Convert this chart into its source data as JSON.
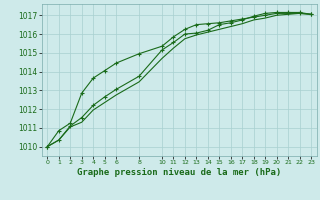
{
  "xlabel": "Graphe pression niveau de la mer (hPa)",
  "background_color": "#ceeaea",
  "grid_color": "#a8d0d0",
  "line_color": "#1a6b1a",
  "text_color": "#1a6b1a",
  "xlim": [
    -0.5,
    23.5
  ],
  "ylim": [
    1009.5,
    1017.6
  ],
  "yticks": [
    1010,
    1011,
    1012,
    1013,
    1014,
    1015,
    1016,
    1017
  ],
  "xtick_positions": [
    0,
    1,
    2,
    3,
    4,
    5,
    6,
    8,
    10,
    11,
    12,
    13,
    14,
    15,
    16,
    17,
    18,
    19,
    20,
    21,
    22,
    23
  ],
  "xtick_labels": [
    "0",
    "1",
    "2",
    "3",
    "4",
    "5",
    "6",
    "8",
    "10",
    "11",
    "12",
    "13",
    "14",
    "15",
    "16",
    "17",
    "18",
    "19",
    "20",
    "21",
    "22",
    "23"
  ],
  "series1_x": [
    0,
    1,
    2,
    3,
    4,
    5,
    6,
    8,
    10,
    11,
    12,
    13,
    14,
    15,
    16,
    17,
    18,
    19,
    20,
    21,
    22,
    23
  ],
  "series1_y": [
    1010.0,
    1010.35,
    1011.1,
    1011.55,
    1012.2,
    1012.65,
    1013.05,
    1013.75,
    1015.15,
    1015.55,
    1016.0,
    1016.05,
    1016.2,
    1016.5,
    1016.6,
    1016.75,
    1016.95,
    1017.1,
    1017.15,
    1017.15,
    1017.15,
    1017.05
  ],
  "series2_x": [
    0,
    1,
    2,
    3,
    4,
    5,
    6,
    8,
    10,
    11,
    12,
    13,
    14,
    15,
    16,
    17,
    18,
    19,
    20,
    21,
    22,
    23
  ],
  "series2_y": [
    1010.0,
    1010.35,
    1011.05,
    1011.3,
    1011.95,
    1012.35,
    1012.75,
    1013.45,
    1014.7,
    1015.25,
    1015.75,
    1015.95,
    1016.1,
    1016.25,
    1016.4,
    1016.55,
    1016.75,
    1016.85,
    1017.0,
    1017.05,
    1017.1,
    1017.05
  ],
  "series3_x": [
    0,
    1,
    2,
    3,
    4,
    5,
    6,
    8,
    10,
    11,
    12,
    13,
    14,
    15,
    16,
    17,
    18,
    19,
    20,
    21,
    22,
    23
  ],
  "series3_y": [
    1010.0,
    1010.85,
    1011.25,
    1012.85,
    1013.65,
    1014.05,
    1014.45,
    1014.95,
    1015.35,
    1015.85,
    1016.25,
    1016.5,
    1016.55,
    1016.6,
    1016.7,
    1016.8,
    1016.9,
    1017.0,
    1017.1,
    1017.1,
    1017.1,
    1017.05
  ]
}
